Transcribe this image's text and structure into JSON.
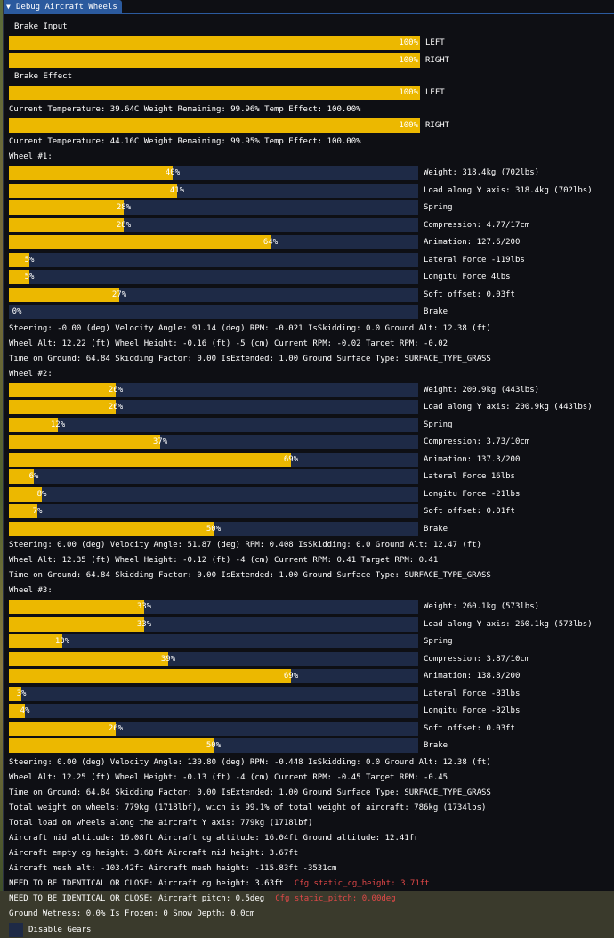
{
  "window": {
    "title": "Debug Aircraft Wheels"
  },
  "colors": {
    "bar_fill": "#ecb800",
    "bar_bg": "#1e2a46",
    "warning": "#e24848",
    "title_bg": "#2b5a9e"
  },
  "brake_input": {
    "header": "Brake Input",
    "bars": [
      {
        "pct": 100,
        "text": "100%",
        "label": "LEFT"
      },
      {
        "pct": 100,
        "text": "100%",
        "label": "RIGHT"
      }
    ]
  },
  "brake_effect": {
    "header": "Brake Effect",
    "left": {
      "pct": 100,
      "text": "100%",
      "label": "LEFT",
      "info": "Current Temperature: 39.64C  Weight Remaining: 99.96%  Temp Effect: 100.00%"
    },
    "right": {
      "pct": 100,
      "text": "100%",
      "label": "RIGHT",
      "info": "Current Temperature: 44.16C  Weight Remaining: 99.95%  Temp Effect: 100.00%"
    }
  },
  "wheels": [
    {
      "title": "Wheel #1:",
      "bars": [
        {
          "pct": 40,
          "text": "40%",
          "label": "Weight: 318.4kg (702lbs)"
        },
        {
          "pct": 41,
          "text": "41%",
          "label": "Load along Y axis: 318.4kg (702lbs)"
        },
        {
          "pct": 28,
          "text": "28%",
          "label": "Spring"
        },
        {
          "pct": 28,
          "text": "28%",
          "label": "Compression: 4.77/17cm"
        },
        {
          "pct": 64,
          "text": "64%",
          "label": "Animation: 127.6/200"
        },
        {
          "pct": 5,
          "text": "5%",
          "label": "Lateral Force -119lbs"
        },
        {
          "pct": 5,
          "text": "5%",
          "label": "Longitu Force 4lbs"
        },
        {
          "pct": 27,
          "text": "27%",
          "label": "Soft offset: 0.03ft"
        },
        {
          "pct": 0,
          "text": "0%",
          "label": "Brake"
        }
      ],
      "lines": [
        "Steering: -0.00 (deg)  Velocity Angle: 91.14 (deg)  RPM: -0.021  IsSkidding: 0.0  Ground Alt: 12.38 (ft)",
        "Wheel Alt: 12.22 (ft)  Wheel Height: -0.16 (ft)  -5 (cm)  Current RPM: -0.02  Target RPM: -0.02",
        "Time on Ground: 64.84  Skidding Factor: 0.00  IsExtended: 1.00  Ground Surface Type: SURFACE_TYPE_GRASS"
      ]
    },
    {
      "title": "Wheel #2:",
      "bars": [
        {
          "pct": 26,
          "text": "26%",
          "label": "Weight: 200.9kg (443lbs)"
        },
        {
          "pct": 26,
          "text": "26%",
          "label": "Load along Y axis: 200.9kg (443lbs)"
        },
        {
          "pct": 12,
          "text": "12%",
          "label": "Spring"
        },
        {
          "pct": 37,
          "text": "37%",
          "label": "Compression: 3.73/10cm"
        },
        {
          "pct": 69,
          "text": "69%",
          "label": "Animation: 137.3/200"
        },
        {
          "pct": 6,
          "text": "6%",
          "label": "Lateral Force 16lbs"
        },
        {
          "pct": 8,
          "text": "8%",
          "label": "Longitu Force -21lbs"
        },
        {
          "pct": 7,
          "text": "7%",
          "label": "Soft offset: 0.01ft"
        },
        {
          "pct": 50,
          "text": "50%",
          "label": "Brake"
        }
      ],
      "lines": [
        "Steering: 0.00 (deg)  Velocity Angle: 51.87 (deg)  RPM: 0.408  IsSkidding: 0.0  Ground Alt: 12.47 (ft)",
        "Wheel Alt: 12.35 (ft)  Wheel Height: -0.12 (ft)  -4 (cm)  Current RPM: 0.41  Target RPM: 0.41",
        "Time on Ground: 64.84  Skidding Factor: 0.00  IsExtended: 1.00  Ground Surface Type: SURFACE_TYPE_GRASS"
      ]
    },
    {
      "title": "Wheel #3:",
      "bars": [
        {
          "pct": 33,
          "text": "33%",
          "label": "Weight: 260.1kg (573lbs)"
        },
        {
          "pct": 33,
          "text": "33%",
          "label": "Load along Y axis: 260.1kg (573lbs)"
        },
        {
          "pct": 13,
          "text": "13%",
          "label": "Spring"
        },
        {
          "pct": 39,
          "text": "39%",
          "label": "Compression: 3.87/10cm"
        },
        {
          "pct": 69,
          "text": "69%",
          "label": "Animation: 138.8/200"
        },
        {
          "pct": 3,
          "text": "3%",
          "label": "Lateral Force -83lbs"
        },
        {
          "pct": 4,
          "text": "4%",
          "label": "Longitu Force -82lbs"
        },
        {
          "pct": 26,
          "text": "26%",
          "label": "Soft offset: 0.03ft"
        },
        {
          "pct": 50,
          "text": "50%",
          "label": "Brake"
        }
      ],
      "lines": [
        "Steering: 0.00 (deg)  Velocity Angle: 130.80 (deg)  RPM: -0.448  IsSkidding: 0.0  Ground Alt: 12.38 (ft)",
        "Wheel Alt: 12.25 (ft)  Wheel Height: -0.13 (ft)  -4 (cm)  Current RPM: -0.45  Target RPM: -0.45",
        "Time on Ground: 64.84  Skidding Factor: 0.00  IsExtended: 1.00  Ground Surface Type: SURFACE_TYPE_GRASS"
      ]
    }
  ],
  "summary": {
    "total_weight": "Total weight on wheels: 779kg (1718lbf), wich is 99.1% of total weight of aircraft: 786kg (1734lbs)",
    "total_load": "Total load on wheels along the aircraft Y axis: 779kg (1718lbf)",
    "mid_alt": "Aircraft mid altitude: 16.08ft  Aircraft cg altitude: 16.04ft  Ground altitude: 12.41fr",
    "cg_height": "Aircraft empty cg height: 3.68ft  Aircraft mid height: 3.67ft",
    "mesh_alt": "Aircraft mesh alt: -103.42ft  Aircraft mesh height: -115.83ft  -3531cm",
    "ident_cg": "NEED TO BE IDENTICAL OR CLOSE:  Aircraft cg height: 3.63ft",
    "ident_cg_warn": "Cfg static_cg_height: 3.71ft",
    "ident_pitch": "NEED TO BE IDENTICAL OR CLOSE:  Aircraft pitch: 0.5deg",
    "ident_pitch_warn": "Cfg static_pitch: 0.00deg",
    "ground": "Ground Wetness: 0.0%  Is Frozen: 0  Snow Depth: 0.0cm"
  },
  "disable_gears": {
    "label": "Disable Gears",
    "checked": false
  }
}
